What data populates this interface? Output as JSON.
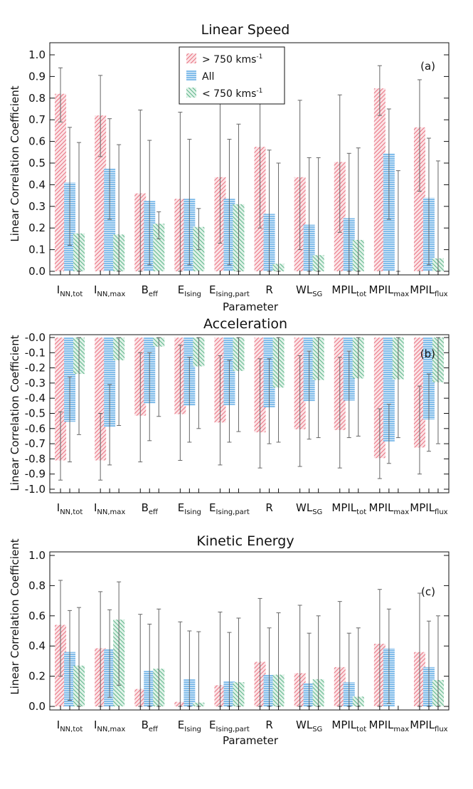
{
  "colors": {
    "fast": "#e8707f",
    "all": "#5aa8e4",
    "slow": "#5ab487"
  },
  "legend": {
    "fast_label": "> 750 kms",
    "fast_sup": "-1",
    "all_label": "All",
    "slow_label": "< 750 kms",
    "slow_sup": "-1"
  },
  "x_categories": [
    {
      "main": "I",
      "sub": "NN,tot"
    },
    {
      "main": "I",
      "sub": "NN,max"
    },
    {
      "main": "B",
      "sub": "eff"
    },
    {
      "main": "E",
      "sub": "Ising"
    },
    {
      "main": "E",
      "sub": "Ising,part"
    },
    {
      "main": "R",
      "sub": ""
    },
    {
      "main": "WL",
      "sub": "SG"
    },
    {
      "main": "MPIL",
      "sub": "tot"
    },
    {
      "main": "MPIL",
      "sub": "max"
    },
    {
      "main": "MPIL",
      "sub": "flux"
    }
  ],
  "chart_data": [
    {
      "type": "bar",
      "panel": "(a)",
      "title": "Linear Speed",
      "xlabel": "Parameter",
      "ylabel": "Linear Correlation Coefficient",
      "ylim": [
        0,
        1.0
      ],
      "yticks": [
        "0.0",
        "0.1",
        "0.2",
        "0.3",
        "0.4",
        "0.5",
        "0.6",
        "0.7",
        "0.8",
        "0.9",
        "1.0"
      ],
      "has_legend": true,
      "series": [
        {
          "name": "> 750 kms-1",
          "values": [
            0.82,
            0.72,
            0.36,
            0.335,
            0.435,
            0.575,
            0.435,
            0.505,
            0.845,
            0.665
          ],
          "err": [
            [
              0.69,
              0.94
            ],
            [
              0.53,
              0.905
            ],
            [
              0.0,
              0.745
            ],
            [
              0.0,
              0.735
            ],
            [
              0.13,
              0.785
            ],
            [
              0.2,
              0.85
            ],
            [
              0.1,
              0.79
            ],
            [
              0.18,
              0.815
            ],
            [
              0.72,
              0.95
            ],
            [
              0.37,
              0.885
            ]
          ]
        },
        {
          "name": "All",
          "values": [
            0.41,
            0.475,
            0.325,
            0.335,
            0.335,
            0.265,
            0.215,
            0.245,
            0.545,
            0.34
          ],
          "err": [
            [
              0.12,
              0.665
            ],
            [
              0.24,
              0.705
            ],
            [
              0.03,
              0.605
            ],
            [
              0.03,
              0.61
            ],
            [
              0.03,
              0.61
            ],
            [
              0.0,
              0.56
            ],
            [
              0.0,
              0.525
            ],
            [
              0.0,
              0.545
            ],
            [
              0.24,
              0.75
            ],
            [
              0.03,
              0.615
            ]
          ]
        },
        {
          "name": "< 750 kms-1",
          "values": [
            0.175,
            0.17,
            0.22,
            0.205,
            0.31,
            0.035,
            0.075,
            0.145,
            null,
            0.06
          ],
          "err": [
            [
              0.0,
              0.595
            ],
            [
              0.0,
              0.585
            ],
            [
              0.15,
              0.275
            ],
            [
              0.1,
              0.29
            ],
            [
              0.0,
              0.68
            ],
            [
              0.0,
              0.5
            ],
            [
              0.0,
              0.525
            ],
            [
              0.0,
              0.57
            ],
            [
              0.0,
              0.465
            ],
            [
              0.0,
              0.51
            ]
          ]
        }
      ]
    },
    {
      "type": "bar",
      "panel": "(b)",
      "title": "Acceleration",
      "xlabel": "",
      "ylabel": "Linear Correlation Coefficient",
      "ylim": [
        -1.0,
        0.0
      ],
      "yticks": [
        "-0.0",
        "-0.1",
        "-0.2",
        "-0.3",
        "-0.4",
        "-0.5",
        "-0.6",
        "-0.7",
        "-0.8",
        "-0.9",
        "-1.0"
      ],
      "has_legend": false,
      "series": [
        {
          "name": "> 750 kms-1",
          "values": [
            -0.81,
            -0.81,
            -0.515,
            -0.505,
            -0.56,
            -0.625,
            -0.605,
            -0.61,
            -0.795,
            -0.725
          ],
          "err": [
            [
              -0.94,
              -0.49
            ],
            [
              -0.94,
              -0.5
            ],
            [
              -0.82,
              -0.1
            ],
            [
              -0.81,
              -0.05
            ],
            [
              -0.84,
              -0.12
            ],
            [
              -0.86,
              -0.14
            ],
            [
              -0.85,
              -0.12
            ],
            [
              -0.86,
              -0.13
            ],
            [
              -0.93,
              -0.47
            ],
            [
              -0.9,
              -0.32
            ]
          ]
        },
        {
          "name": "All",
          "values": [
            -0.555,
            -0.59,
            -0.435,
            -0.45,
            -0.445,
            -0.46,
            -0.42,
            -0.415,
            -0.685,
            -0.54
          ],
          "err": [
            [
              -0.82,
              -0.26
            ],
            [
              -0.84,
              -0.31
            ],
            [
              -0.68,
              -0.1
            ],
            [
              -0.69,
              -0.13
            ],
            [
              -0.69,
              -0.15
            ],
            [
              -0.7,
              -0.14
            ],
            [
              -0.67,
              -0.09
            ],
            [
              -0.66,
              -0.09
            ],
            [
              -0.83,
              -0.44
            ],
            [
              -0.75,
              -0.24
            ]
          ]
        },
        {
          "name": "< 750 kms-1",
          "values": [
            -0.24,
            -0.15,
            -0.06,
            -0.19,
            -0.22,
            -0.33,
            -0.28,
            -0.27,
            -0.275,
            -0.295
          ],
          "err": [
            [
              -0.64,
              -0.0
            ],
            [
              -0.58,
              -0.0
            ],
            [
              -0.52,
              -0.0
            ],
            [
              -0.6,
              -0.0
            ],
            [
              -0.62,
              -0.0
            ],
            [
              -0.69,
              -0.0
            ],
            [
              -0.66,
              -0.0
            ],
            [
              -0.65,
              -0.0
            ],
            [
              -0.66,
              -0.0
            ],
            [
              -0.7,
              -0.0
            ]
          ]
        }
      ]
    },
    {
      "type": "bar",
      "panel": "(c)",
      "title": "Kinetic Energy",
      "xlabel": "Parameter",
      "ylabel": "Linear Correlation Coefficient",
      "ylim": [
        0,
        1.0
      ],
      "yticks": [
        "0.0",
        "0.2",
        "0.4",
        "0.6",
        "0.8",
        "1.0"
      ],
      "has_legend": false,
      "series": [
        {
          "name": "> 750 kms-1",
          "values": [
            0.54,
            0.385,
            0.115,
            0.03,
            0.14,
            0.295,
            0.22,
            0.26,
            0.415,
            0.36
          ],
          "err": [
            [
              0.2,
              0.835
            ],
            [
              0.0,
              0.76
            ],
            [
              0.0,
              0.61
            ],
            [
              0.0,
              0.56
            ],
            [
              0.0,
              0.625
            ],
            [
              0.0,
              0.715
            ],
            [
              0.0,
              0.67
            ],
            [
              0.0,
              0.695
            ],
            [
              0.0,
              0.775
            ],
            [
              0.0,
              0.75
            ]
          ]
        },
        {
          "name": "All",
          "values": [
            0.36,
            0.38,
            0.235,
            0.18,
            0.165,
            0.21,
            0.155,
            0.16,
            0.385,
            0.26
          ],
          "err": [
            [
              0.04,
              0.635
            ],
            [
              0.06,
              0.64
            ],
            [
              0.0,
              0.545
            ],
            [
              0.0,
              0.5
            ],
            [
              0.0,
              0.49
            ],
            [
              0.0,
              0.52
            ],
            [
              0.0,
              0.485
            ],
            [
              0.0,
              0.485
            ],
            [
              0.02,
              0.645
            ],
            [
              0.0,
              0.565
            ]
          ]
        },
        {
          "name": "< 750 kms-1",
          "values": [
            0.27,
            0.575,
            0.25,
            0.025,
            0.16,
            0.21,
            0.18,
            0.065,
            null,
            0.175
          ],
          "err": [
            [
              0.0,
              0.655
            ],
            [
              0.14,
              0.825
            ],
            [
              0.0,
              0.645
            ],
            [
              0.0,
              0.495
            ],
            [
              0.0,
              0.585
            ],
            [
              0.0,
              0.62
            ],
            [
              0.0,
              0.6
            ],
            [
              0.0,
              0.52
            ],
            [
              null,
              null
            ],
            [
              0.0,
              0.6
            ]
          ]
        }
      ]
    }
  ]
}
